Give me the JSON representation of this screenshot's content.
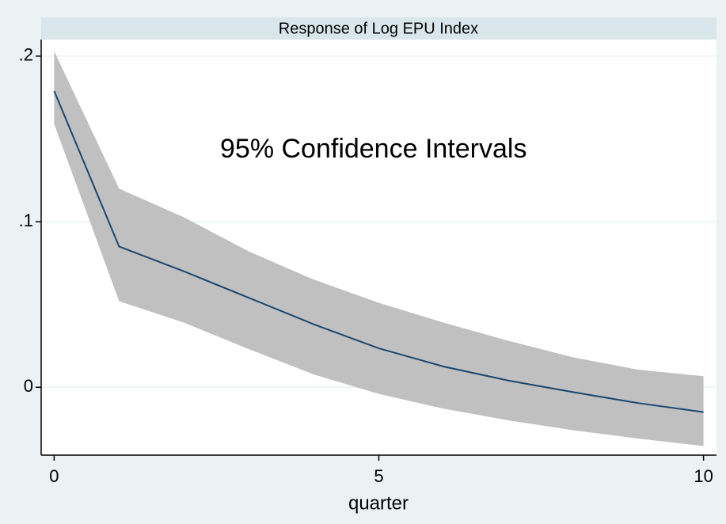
{
  "chart_data": {
    "type": "line-band",
    "title": "Response of Log EPU Index",
    "annotation": "95% Confidence Intervals",
    "xlabel": "quarter",
    "x": [
      0,
      1,
      2,
      3,
      4,
      5,
      6,
      7,
      8,
      9,
      10
    ],
    "values": [
      0.179,
      0.085,
      0.07,
      0.054,
      0.038,
      0.0235,
      0.0125,
      0.004,
      -0.003,
      -0.0096,
      -0.015
    ],
    "upper": [
      0.203,
      0.12,
      0.1026,
      0.082,
      0.065,
      0.051,
      0.039,
      0.028,
      0.018,
      0.0106,
      0.0067
    ],
    "lower": [
      0.159,
      0.052,
      0.039,
      0.023,
      0.0077,
      -0.004,
      -0.013,
      -0.02,
      -0.026,
      -0.031,
      -0.0355
    ],
    "color": "#1a476f",
    "band_color": "#c0c0c0",
    "xlim": [
      -0.2,
      10.2
    ],
    "xticks": [
      0,
      5,
      10
    ],
    "ylim": [
      -0.041,
      0.21
    ],
    "yticks": [
      0,
      {
        "value": 0.1,
        "label": ".1"
      },
      {
        "value": 0.2,
        "label": ".2"
      }
    ],
    "grid": true
  }
}
